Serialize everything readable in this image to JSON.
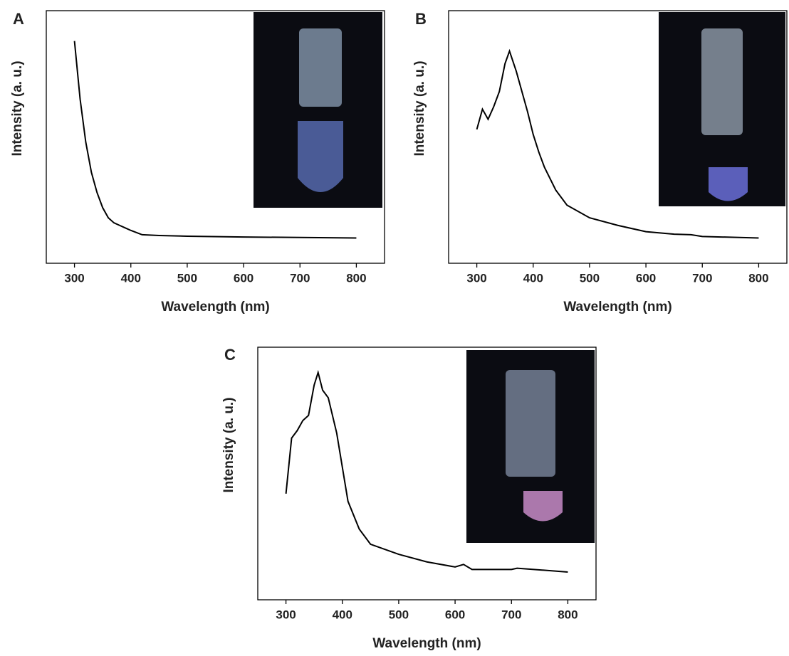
{
  "chart_data": [
    {
      "type": "line",
      "panel_label": "A",
      "xlabel": "Wavelength (nm)",
      "ylabel": "Intensity (a. u.)",
      "xlim": [
        250,
        850
      ],
      "xticks": [
        300,
        400,
        500,
        600,
        700,
        800
      ],
      "ylim": [
        0,
        100
      ],
      "series": [
        {
          "color": "#000000",
          "x": [
            300,
            310,
            320,
            330,
            340,
            350,
            360,
            370,
            380,
            390,
            400,
            420,
            450,
            500,
            600,
            700,
            800
          ],
          "values": [
            88,
            65,
            48,
            36,
            28,
            22,
            18,
            16,
            15,
            14,
            13,
            11.3,
            11,
            10.7,
            10.4,
            10.2,
            10
          ]
        }
      ]
    },
    {
      "type": "line",
      "panel_label": "B",
      "xlabel": "Wavelength (nm)",
      "ylabel": "Intensity (a. u.)",
      "xlim": [
        250,
        850
      ],
      "xticks": [
        300,
        400,
        500,
        600,
        700,
        800
      ],
      "ylim": [
        0,
        100
      ],
      "series": [
        {
          "color": "#000000",
          "x": [
            300,
            310,
            320,
            330,
            340,
            350,
            358,
            370,
            380,
            390,
            400,
            410,
            420,
            440,
            460,
            500,
            550,
            600,
            650,
            680,
            700,
            800
          ],
          "values": [
            53,
            61,
            57,
            62,
            68,
            79,
            84,
            76,
            68,
            60,
            51,
            44,
            38,
            29,
            23,
            18,
            15,
            12.5,
            11.5,
            11.3,
            10.6,
            10
          ]
        }
      ]
    },
    {
      "type": "line",
      "panel_label": "C",
      "xlabel": "Wavelength (nm)",
      "ylabel": "Intensity (a. u.)",
      "xlim": [
        250,
        850
      ],
      "xticks": [
        300,
        400,
        500,
        600,
        700,
        800
      ],
      "ylim": [
        0,
        100
      ],
      "series": [
        {
          "color": "#000000",
          "x": [
            300,
            310,
            320,
            330,
            340,
            350,
            357,
            365,
            375,
            390,
            410,
            430,
            450,
            500,
            550,
            600,
            615,
            630,
            700,
            710,
            800
          ],
          "values": [
            42,
            64,
            67,
            71,
            73,
            85,
            90,
            83,
            80,
            66,
            39,
            28,
            22,
            18,
            15,
            13,
            14,
            12,
            12,
            12.5,
            11
          ]
        }
      ]
    }
  ]
}
